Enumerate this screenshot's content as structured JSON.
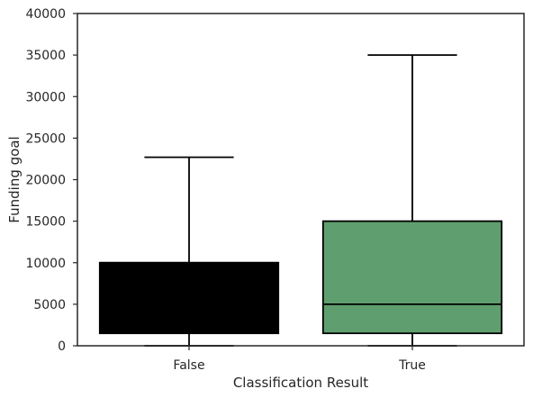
{
  "chart_data": {
    "type": "box",
    "title": "",
    "xlabel": "Classification Result",
    "ylabel": "Funding goal",
    "ylim": [
      0,
      40000
    ],
    "yticks": [
      0,
      5000,
      10000,
      15000,
      20000,
      25000,
      30000,
      35000,
      40000
    ],
    "grid": false,
    "categories": [
      "False",
      "True"
    ],
    "boxes": [
      {
        "category": "False",
        "whisker_low": 0,
        "q1": 1500,
        "median": 10000,
        "q3": 10000,
        "whisker_high": 22700,
        "color": "#000000"
      },
      {
        "category": "True",
        "whisker_low": 0,
        "q1": 1500,
        "median": 5000,
        "q3": 15000,
        "whisker_high": 35000,
        "color": "#5f9e6e"
      }
    ]
  }
}
